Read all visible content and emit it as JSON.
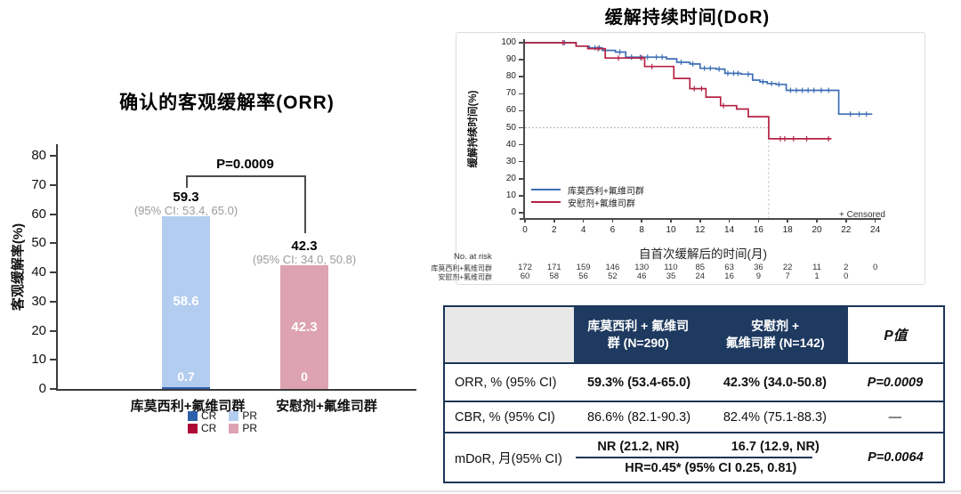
{
  "colors": {
    "km_blue": "#3f6fb5",
    "km_red": "#b52243",
    "bar_cr_blue": "#2d62ab",
    "bar_pr_blue": "#b3cdf0",
    "bar_cr_red": "#ae0a36",
    "bar_pr_pink": "#dda3b2",
    "table_navy": "#1f3a60",
    "table_header_gray": "#e8e8e8",
    "axis_gray": "#3c3c3c",
    "ci_gray": "#9b9b9b"
  },
  "chart_data": [
    {
      "id": "orr_bar_chart",
      "type": "bar",
      "title": "确认的客观缓解率(ORR)",
      "xlabel": "",
      "ylabel": "客观缓解率(%)",
      "ylim": [
        0,
        80
      ],
      "yticks": [
        0,
        10,
        20,
        30,
        40,
        50,
        60,
        70,
        80
      ],
      "grid": false,
      "categories": [
        "库莫西利+氟维司群",
        "安慰剂+氟维司群"
      ],
      "series": [
        {
          "name": "CR",
          "values": [
            0.7,
            0
          ],
          "colors": [
            "#2d62ab",
            "#ae0a36"
          ]
        },
        {
          "name": "PR",
          "values": [
            58.6,
            42.3
          ],
          "colors": [
            "#b3cdf0",
            "#dda3b2"
          ]
        }
      ],
      "totals": [
        {
          "value": "59.3",
          "ci": "(95% CI: 53.4, 65.0)"
        },
        {
          "value": "42.3",
          "ci": "(95% CI: 34.0, 50.8)"
        }
      ],
      "inner_labels": [
        {
          "cr": "0.7",
          "pr": "58.6"
        },
        {
          "cr": "0",
          "pr": "42.3"
        }
      ],
      "comparison": {
        "label": "P=0.0009"
      },
      "legend": {
        "position": "bottom",
        "rows": [
          [
            {
              "label": "CR",
              "color": "#2d62ab"
            },
            {
              "label": "PR",
              "color": "#b3cdf0"
            }
          ],
          [
            {
              "label": "CR",
              "color": "#ae0a36"
            },
            {
              "label": "PR",
              "color": "#dda3b2"
            }
          ]
        ]
      }
    },
    {
      "id": "dor_km_chart",
      "type": "line",
      "subtype": "kaplan-meier",
      "title": "缓解持续时间(DoR)",
      "xlabel": "自首次缓解后的时间(月)",
      "ylabel": "缓解持续时间(%)",
      "xlim": [
        0,
        25
      ],
      "ylim": [
        0,
        100
      ],
      "xticks": [
        0,
        2,
        4,
        6,
        8,
        10,
        12,
        14,
        16,
        18,
        20,
        22,
        24
      ],
      "yticks": [
        0,
        10,
        20,
        30,
        40,
        50,
        60,
        70,
        80,
        90,
        100
      ],
      "censored_note": "+ Censored",
      "median_reference": {
        "y_pct": 50,
        "x_month": 16.7
      },
      "series": [
        {
          "name": "库莫西利+氟维司群",
          "color": "#3f6fb5",
          "steps": [
            [
              0,
              100
            ],
            [
              3.5,
              100
            ],
            [
              3.5,
              98
            ],
            [
              4.4,
              98
            ],
            [
              4.4,
              97
            ],
            [
              5.3,
              97
            ],
            [
              5.3,
              95.5
            ],
            [
              6.2,
              95.5
            ],
            [
              6.2,
              94.5
            ],
            [
              6.9,
              94.5
            ],
            [
              6.9,
              91.5
            ],
            [
              9.7,
              91.5
            ],
            [
              9.7,
              90.5
            ],
            [
              10.4,
              90.5
            ],
            [
              10.4,
              88.5
            ],
            [
              11.3,
              88.5
            ],
            [
              11.3,
              87.5
            ],
            [
              12,
              87.5
            ],
            [
              12,
              85
            ],
            [
              13.1,
              85
            ],
            [
              13.1,
              84.5
            ],
            [
              13.7,
              84.5
            ],
            [
              13.7,
              82
            ],
            [
              14.8,
              82
            ],
            [
              14.8,
              81.5
            ],
            [
              15.6,
              81.5
            ],
            [
              15.6,
              78
            ],
            [
              16.1,
              78
            ],
            [
              16.1,
              77
            ],
            [
              16.6,
              77
            ],
            [
              16.6,
              76
            ],
            [
              17.2,
              76
            ],
            [
              17.2,
              75.5
            ],
            [
              17.9,
              75.5
            ],
            [
              17.9,
              72
            ],
            [
              21.5,
              72
            ],
            [
              21.5,
              58
            ],
            [
              23.8,
              58
            ]
          ],
          "censor_times": [
            2.7,
            4.8,
            5.1,
            6.5,
            7.3,
            7.9,
            8.4,
            9,
            9.4,
            10.7,
            11.5,
            12.3,
            12.7,
            13.3,
            13.9,
            14.3,
            14.6,
            15.3,
            16.3,
            16.9,
            17.4,
            18.2,
            18.6,
            19,
            19.4,
            19.8,
            20.3,
            20.8,
            22.3,
            22.9,
            23.4
          ]
        },
        {
          "name": "安慰剂+氟维司群",
          "color": "#b52243",
          "steps": [
            [
              0,
              100
            ],
            [
              3.5,
              100
            ],
            [
              3.5,
              98
            ],
            [
              4.3,
              98
            ],
            [
              4.3,
              96.5
            ],
            [
              5.5,
              96.5
            ],
            [
              5.5,
              91
            ],
            [
              8.2,
              91
            ],
            [
              8.2,
              86
            ],
            [
              10.2,
              86
            ],
            [
              10.2,
              79
            ],
            [
              11.3,
              79
            ],
            [
              11.3,
              73
            ],
            [
              12.4,
              73
            ],
            [
              12.4,
              68
            ],
            [
              13.4,
              68
            ],
            [
              13.4,
              63
            ],
            [
              14.5,
              63
            ],
            [
              14.5,
              61
            ],
            [
              15.3,
              61
            ],
            [
              15.3,
              56.5
            ],
            [
              16.7,
              56.5
            ],
            [
              16.7,
              43.5
            ],
            [
              21,
              43.5
            ]
          ],
          "censor_times": [
            2.6,
            5,
            6.4,
            8,
            8.7,
            11.6,
            12.1,
            13.6,
            17.5,
            17.8,
            18.4,
            19.3,
            20.8
          ]
        }
      ],
      "risk_table": {
        "label": "No. at risk",
        "rows": [
          {
            "name": "库莫西利+氟维司群",
            "counts": [
              172,
              171,
              159,
              146,
              130,
              110,
              85,
              63,
              36,
              22,
              11,
              2,
              0
            ]
          },
          {
            "name": "安慰剂+氟维司群",
            "counts": [
              60,
              58,
              56,
              52,
              46,
              35,
              24,
              16,
              9,
              7,
              1,
              0
            ]
          }
        ]
      }
    }
  ],
  "summary_table": {
    "header": {
      "col1": "",
      "col2_line1": "库莫西利 + 氟维司",
      "col2_line2": "群 (N=290)",
      "col3_line1": "安慰剂 +",
      "col3_line2": "氟维司群 (N=142)",
      "p_label": "P值"
    },
    "rows": {
      "orr": {
        "label": "ORR, % (95% CI)",
        "arm1": "59.3% (53.4-65.0)",
        "arm2": "42.3% (34.0-50.8)",
        "p": "P=0.0009"
      },
      "cbr": {
        "label": "CBR, % (95% CI)",
        "arm1": "86.6% (82.1-90.3)",
        "arm2": "82.4% (75.1-88.3)",
        "p": "—"
      },
      "mdor": {
        "label": "mDoR, 月(95% CI)",
        "arm1": "NR (21.2, NR)",
        "arm2": "16.7 (12.9, NR)",
        "hr": "HR=0.45* (95% CI 0.25, 0.81)",
        "p": "P=0.0064"
      }
    }
  }
}
